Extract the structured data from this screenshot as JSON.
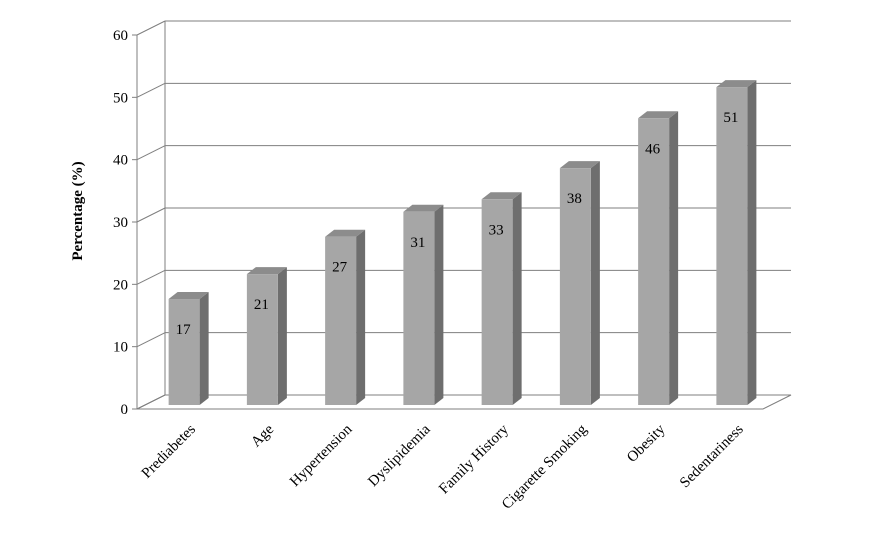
{
  "chart_data": {
    "type": "bar",
    "categories": [
      "Prediabetes",
      "Age",
      "Hypertension",
      "Dyslipidemia",
      "Family History",
      "Cigarette Smoking",
      "Obesity",
      "Sedentariness"
    ],
    "values": [
      17,
      21,
      27,
      31,
      33,
      38,
      46,
      51
    ],
    "data_labels": [
      "17",
      "21",
      "27",
      "31",
      "33",
      "38",
      "46",
      "51"
    ],
    "ylabel": "Percentage (%)",
    "xlabel": "",
    "ylim": [
      0,
      60
    ],
    "yticks": [
      0,
      10,
      20,
      30,
      40,
      50,
      60
    ],
    "ytick_labels": [
      "0",
      "10",
      "20",
      "30",
      "40",
      "50",
      "60"
    ],
    "grid": true,
    "style": "3d-column",
    "colors": {
      "bar_front": "#a6a6a6",
      "bar_side": "#6e6e6e",
      "bar_top": "#8c8c8c",
      "grid": "#7f7f7f"
    }
  }
}
